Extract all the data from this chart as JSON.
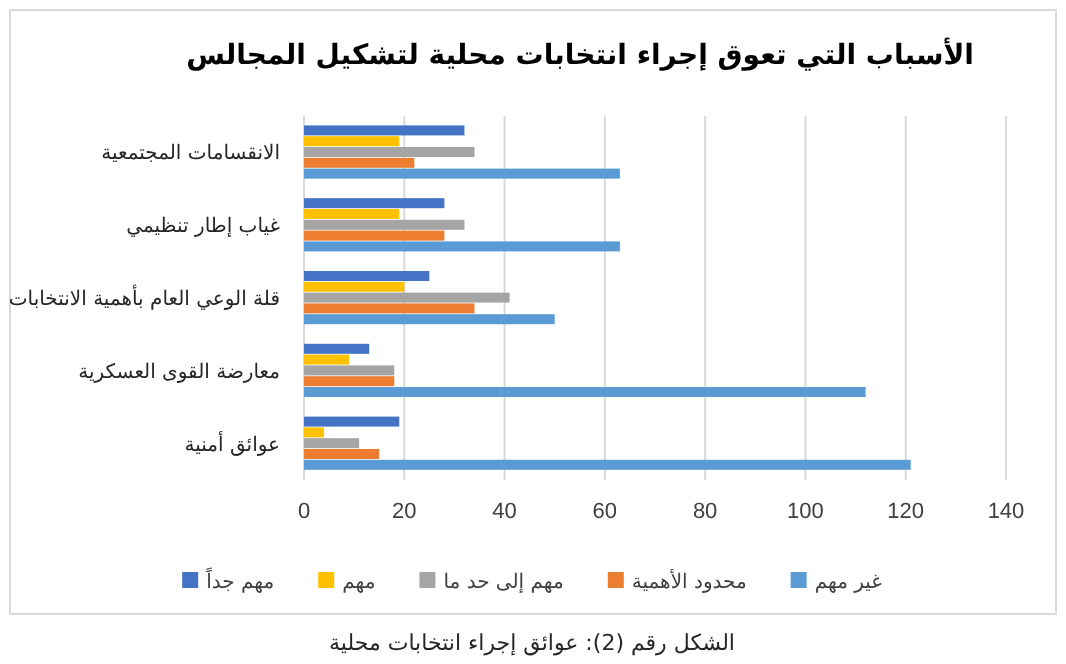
{
  "chart_data": {
    "type": "bar",
    "orientation": "horizontal",
    "title": "الأسباب التي تعوق إجراء انتخابات محلية لتشكيل المجالس",
    "categories": [
      "الانقسامات المجتمعية",
      "غياب إطار تنظيمي",
      "قلة الوعي العام بأهمية الانتخابات",
      "معارضة القوى العسكرية",
      "عوائق أمنية"
    ],
    "series": [
      {
        "name": "غير مهم",
        "color": "#5b9bd5",
        "values": [
          63,
          63,
          50,
          112,
          121
        ]
      },
      {
        "name": "محدود الأهمية",
        "color": "#ed7d31",
        "values": [
          22,
          28,
          34,
          18,
          15
        ]
      },
      {
        "name": "مهم إلى حد ما",
        "color": "#a5a5a5",
        "values": [
          34,
          32,
          41,
          18,
          11
        ]
      },
      {
        "name": "مهم",
        "color": "#ffc000",
        "values": [
          19,
          19,
          20,
          9,
          4
        ]
      },
      {
        "name": "مهم جداً",
        "color": "#4472c4",
        "values": [
          32,
          28,
          25,
          13,
          19
        ]
      }
    ],
    "xlim": [
      0,
      140
    ],
    "xticks": [
      0,
      20,
      40,
      60,
      80,
      100,
      120,
      140
    ],
    "grid": "x",
    "legend": "bottom",
    "annotations": [
      "الشكل رقم (2): عوائق إجراء انتخابات محلية"
    ]
  }
}
